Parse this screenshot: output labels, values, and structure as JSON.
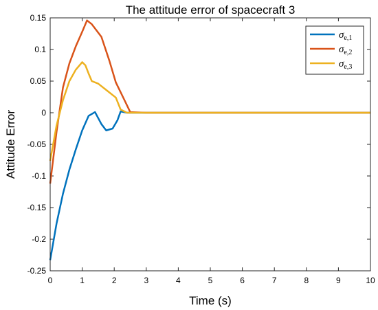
{
  "chart_data": {
    "type": "line",
    "title": "The attitude error of  spacecraft 3",
    "xlabel": "Time (s)",
    "ylabel": "Attitude Error",
    "xlim": [
      0,
      10
    ],
    "ylim": [
      -0.25,
      0.15
    ],
    "xticks": [
      0,
      1,
      2,
      3,
      4,
      5,
      6,
      7,
      8,
      9,
      10
    ],
    "yticks": [
      -0.25,
      -0.2,
      -0.15,
      -0.1,
      -0.05,
      0,
      0.05,
      0.1,
      0.15
    ],
    "xtick_labels": [
      "0",
      "1",
      "2",
      "3",
      "4",
      "5",
      "6",
      "7",
      "8",
      "9",
      "10"
    ],
    "ytick_labels": [
      "-0.25",
      "-0.2",
      "-0.15",
      "-0.1",
      "-0.05",
      "0",
      "0.05",
      "0.1",
      "0.15"
    ],
    "grid": false,
    "legend_position": "top-right",
    "series": [
      {
        "name": "σe,1",
        "symbol": "σ",
        "subscript": "e,1",
        "color": "#0072BD",
        "x": [
          0,
          0.2,
          0.4,
          0.6,
          0.8,
          1.0,
          1.2,
          1.4,
          1.6,
          1.75,
          1.95,
          2.1,
          2.2,
          2.4,
          3.0,
          4.0,
          5.0,
          6.0,
          7.0,
          8.0,
          9.0,
          10.0
        ],
        "y": [
          -0.233,
          -0.175,
          -0.128,
          -0.09,
          -0.058,
          -0.028,
          -0.005,
          0.001,
          -0.018,
          -0.028,
          -0.025,
          -0.012,
          0.002,
          0.0,
          0.0,
          0.0,
          0.0,
          0.0,
          0.0,
          0.0,
          0.0,
          0.0
        ]
      },
      {
        "name": "σe,2",
        "symbol": "σ",
        "subscript": "e,2",
        "color": "#D95319",
        "x": [
          0,
          0.2,
          0.4,
          0.6,
          0.8,
          1.0,
          1.15,
          1.3,
          1.6,
          1.85,
          2.05,
          2.3,
          2.5,
          3.0,
          4.0,
          5.0,
          6.0,
          7.0,
          8.0,
          9.0,
          10.0
        ],
        "y": [
          -0.112,
          -0.03,
          0.04,
          0.078,
          0.105,
          0.128,
          0.146,
          0.14,
          0.12,
          0.082,
          0.048,
          0.022,
          0.001,
          0.0,
          0.0,
          0.0,
          0.0,
          0.0,
          0.0,
          0.0,
          0.0
        ]
      },
      {
        "name": "σe,3",
        "symbol": "σ",
        "subscript": "e,3",
        "color": "#EDB120",
        "x": [
          0,
          0.2,
          0.4,
          0.6,
          0.8,
          1.0,
          1.1,
          1.2,
          1.3,
          1.5,
          1.75,
          2.05,
          2.2,
          2.4,
          3.0,
          4.0,
          5.0,
          6.0,
          7.0,
          8.0,
          9.0,
          10.0
        ],
        "y": [
          -0.076,
          -0.02,
          0.02,
          0.05,
          0.068,
          0.08,
          0.075,
          0.062,
          0.05,
          0.046,
          0.036,
          0.024,
          0.005,
          0.0,
          0.0,
          0.0,
          0.0,
          0.0,
          0.0,
          0.0,
          0.0,
          0.0
        ]
      }
    ]
  }
}
